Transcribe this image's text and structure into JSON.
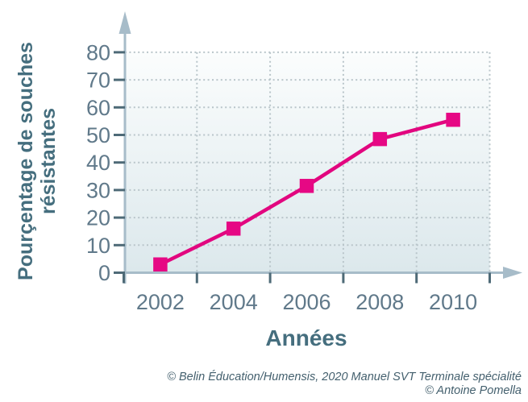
{
  "figure": {
    "y_axis_title": "Pourçentage de souches\nrésistantes",
    "x_axis_title": "Années",
    "credits": [
      "© Belin Éducation/Humensis, 2020 Manuel SVT Terminale spécialité",
      "© Antoine Pomella"
    ]
  },
  "chart_data": {
    "type": "line",
    "title": "",
    "xlabel": "Années",
    "ylabel": "Pourçentage de souches résistantes",
    "categories": [
      "2002",
      "2004",
      "2006",
      "2008",
      "2010"
    ],
    "x": [
      2002,
      2004,
      2006,
      2008,
      2010
    ],
    "values": [
      3,
      16,
      31.5,
      48.5,
      55.5
    ],
    "y_ticks": [
      0,
      10,
      20,
      30,
      40,
      50,
      60,
      70,
      80
    ],
    "ylim": [
      0,
      85
    ],
    "grid": "dotted",
    "legend": "none",
    "marker": "square"
  },
  "style": {
    "series_color": "#e2067f",
    "marker_color": "#e60884",
    "axis_color": "#a7bcc9",
    "tick_color": "#4e6a77",
    "tick_label_color": "#60798a",
    "grid_color": "#b9c5ca",
    "plot_bg_top": "#fbfdfd",
    "plot_bg_bottom": "#dce8ec",
    "title_color": "#456e7e",
    "credits_color": "#44606e"
  }
}
